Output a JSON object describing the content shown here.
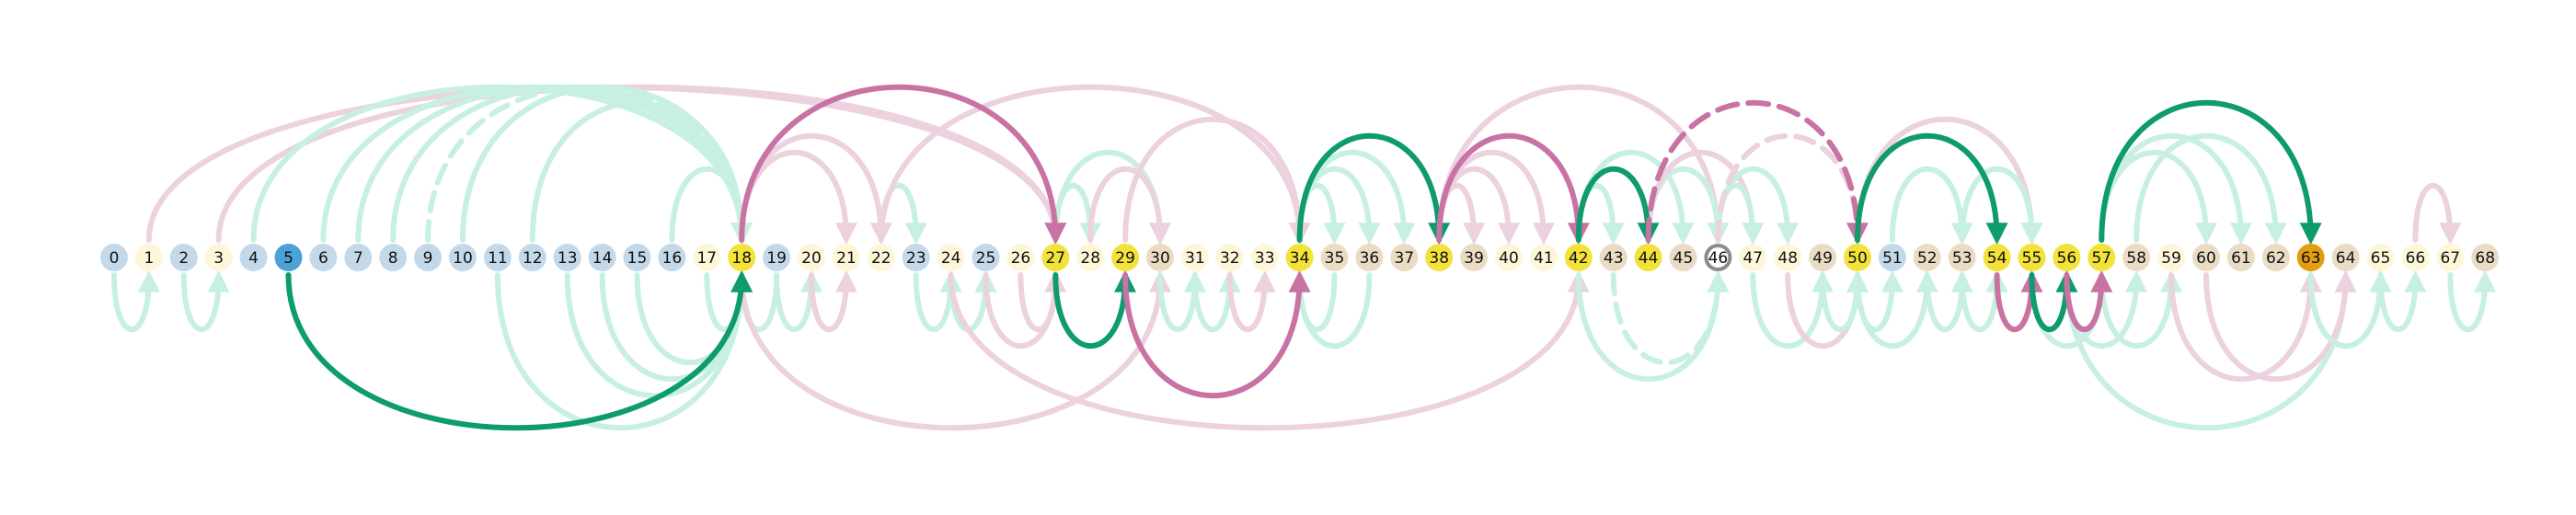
{
  "colors": {
    "blue_light": "#c3d9ea",
    "blue_strong": "#4aa2d9",
    "cream": "#fdf6d8",
    "tan": "#eadcc4",
    "yellow": "#f2e23a",
    "orange": "#e39e0f",
    "green_strong": "#0e9b6e",
    "green_faint": "#c7f0e2",
    "pink_strong": "#c873a3",
    "pink_faint": "#ecd1df",
    "ring": "#8c8c8c"
  },
  "nodes": [
    {
      "id": 0,
      "label": "0",
      "type": "blue_light"
    },
    {
      "id": 1,
      "label": "1",
      "type": "cream"
    },
    {
      "id": 2,
      "label": "2",
      "type": "blue_light"
    },
    {
      "id": 3,
      "label": "3",
      "type": "cream"
    },
    {
      "id": 4,
      "label": "4",
      "type": "blue_light"
    },
    {
      "id": 5,
      "label": "5",
      "type": "blue_strong"
    },
    {
      "id": 6,
      "label": "6",
      "type": "blue_light"
    },
    {
      "id": 7,
      "label": "7",
      "type": "blue_light"
    },
    {
      "id": 8,
      "label": "8",
      "type": "blue_light"
    },
    {
      "id": 9,
      "label": "9",
      "type": "blue_light"
    },
    {
      "id": 10,
      "label": "10",
      "type": "blue_light"
    },
    {
      "id": 11,
      "label": "11",
      "type": "blue_light"
    },
    {
      "id": 12,
      "label": "12",
      "type": "blue_light"
    },
    {
      "id": 13,
      "label": "13",
      "type": "blue_light"
    },
    {
      "id": 14,
      "label": "14",
      "type": "blue_light"
    },
    {
      "id": 15,
      "label": "15",
      "type": "blue_light"
    },
    {
      "id": 16,
      "label": "16",
      "type": "blue_light"
    },
    {
      "id": 17,
      "label": "17",
      "type": "cream"
    },
    {
      "id": 18,
      "label": "18",
      "type": "yellow"
    },
    {
      "id": 19,
      "label": "19",
      "type": "blue_light"
    },
    {
      "id": 20,
      "label": "20",
      "type": "cream"
    },
    {
      "id": 21,
      "label": "21",
      "type": "cream"
    },
    {
      "id": 22,
      "label": "22",
      "type": "cream"
    },
    {
      "id": 23,
      "label": "23",
      "type": "blue_light"
    },
    {
      "id": 24,
      "label": "24",
      "type": "cream"
    },
    {
      "id": 25,
      "label": "25",
      "type": "blue_light"
    },
    {
      "id": 26,
      "label": "26",
      "type": "cream"
    },
    {
      "id": 27,
      "label": "27",
      "type": "yellow"
    },
    {
      "id": 28,
      "label": "28",
      "type": "cream"
    },
    {
      "id": 29,
      "label": "29",
      "type": "yellow"
    },
    {
      "id": 30,
      "label": "30",
      "type": "tan"
    },
    {
      "id": 31,
      "label": "31",
      "type": "cream"
    },
    {
      "id": 32,
      "label": "32",
      "type": "cream"
    },
    {
      "id": 33,
      "label": "33",
      "type": "cream"
    },
    {
      "id": 34,
      "label": "34",
      "type": "yellow"
    },
    {
      "id": 35,
      "label": "35",
      "type": "tan"
    },
    {
      "id": 36,
      "label": "36",
      "type": "tan"
    },
    {
      "id": 37,
      "label": "37",
      "type": "tan"
    },
    {
      "id": 38,
      "label": "38",
      "type": "yellow"
    },
    {
      "id": 39,
      "label": "39",
      "type": "tan"
    },
    {
      "id": 40,
      "label": "40",
      "type": "cream"
    },
    {
      "id": 41,
      "label": "41",
      "type": "cream"
    },
    {
      "id": 42,
      "label": "42",
      "type": "yellow"
    },
    {
      "id": 43,
      "label": "43",
      "type": "tan"
    },
    {
      "id": 44,
      "label": "44",
      "type": "yellow"
    },
    {
      "id": 45,
      "label": "45",
      "type": "tan"
    },
    {
      "id": 46,
      "label": "46",
      "type": "ring"
    },
    {
      "id": 47,
      "label": "47",
      "type": "cream"
    },
    {
      "id": 48,
      "label": "48",
      "type": "cream"
    },
    {
      "id": 49,
      "label": "49",
      "type": "tan"
    },
    {
      "id": 50,
      "label": "50",
      "type": "yellow"
    },
    {
      "id": 51,
      "label": "51",
      "type": "blue_light"
    },
    {
      "id": 52,
      "label": "52",
      "type": "tan"
    },
    {
      "id": 53,
      "label": "53",
      "type": "tan"
    },
    {
      "id": 54,
      "label": "54",
      "type": "yellow"
    },
    {
      "id": 55,
      "label": "55",
      "type": "yellow"
    },
    {
      "id": 56,
      "label": "56",
      "type": "yellow"
    },
    {
      "id": 57,
      "label": "57",
      "type": "yellow"
    },
    {
      "id": 58,
      "label": "58",
      "type": "tan"
    },
    {
      "id": 59,
      "label": "59",
      "type": "cream"
    },
    {
      "id": 60,
      "label": "60",
      "type": "tan"
    },
    {
      "id": 61,
      "label": "61",
      "type": "tan"
    },
    {
      "id": 62,
      "label": "62",
      "type": "tan"
    },
    {
      "id": 63,
      "label": "63",
      "type": "orange"
    },
    {
      "id": 64,
      "label": "64",
      "type": "tan"
    },
    {
      "id": 65,
      "label": "65",
      "type": "cream"
    },
    {
      "id": 66,
      "label": "66",
      "type": "cream"
    },
    {
      "id": 67,
      "label": "67",
      "type": "cream"
    },
    {
      "id": 68,
      "label": "68",
      "type": "tan"
    }
  ],
  "edges": [
    {
      "from": 5,
      "to": 18,
      "side": "below",
      "color": "green_strong",
      "dashed": false
    },
    {
      "from": 18,
      "to": 27,
      "side": "above",
      "color": "pink_strong",
      "dashed": false
    },
    {
      "from": 27,
      "to": 29,
      "side": "below",
      "color": "green_strong",
      "dashed": false
    },
    {
      "from": 29,
      "to": 34,
      "side": "below",
      "color": "pink_strong",
      "dashed": false
    },
    {
      "from": 34,
      "to": 38,
      "side": "above",
      "color": "green_strong",
      "dashed": false
    },
    {
      "from": 38,
      "to": 42,
      "side": "above",
      "color": "pink_strong",
      "dashed": false
    },
    {
      "from": 42,
      "to": 44,
      "side": "above",
      "color": "green_strong",
      "dashed": false
    },
    {
      "from": 44,
      "to": 50,
      "side": "above",
      "color": "pink_strong",
      "dashed": true
    },
    {
      "from": 50,
      "to": 54,
      "side": "above",
      "color": "green_strong",
      "dashed": false
    },
    {
      "from": 54,
      "to": 55,
      "side": "below",
      "color": "pink_strong",
      "dashed": false
    },
    {
      "from": 55,
      "to": 56,
      "side": "below",
      "color": "green_strong",
      "dashed": false
    },
    {
      "from": 56,
      "to": 57,
      "side": "below",
      "color": "pink_strong",
      "dashed": false
    },
    {
      "from": 57,
      "to": 63,
      "side": "above",
      "color": "green_strong",
      "dashed": false
    },
    {
      "from": 0,
      "to": 1,
      "side": "below",
      "color": "green_faint",
      "dashed": false
    },
    {
      "from": 2,
      "to": 3,
      "side": "below",
      "color": "green_faint",
      "dashed": false
    },
    {
      "from": 1,
      "to": 27,
      "side": "above",
      "color": "pink_faint",
      "dashed": false
    },
    {
      "from": 3,
      "to": 27,
      "side": "above",
      "color": "pink_faint",
      "dashed": false
    },
    {
      "from": 4,
      "to": 18,
      "side": "above",
      "color": "green_faint",
      "dashed": false
    },
    {
      "from": 6,
      "to": 18,
      "side": "above",
      "color": "green_faint",
      "dashed": false
    },
    {
      "from": 7,
      "to": 18,
      "side": "above",
      "color": "green_faint",
      "dashed": false
    },
    {
      "from": 8,
      "to": 18,
      "side": "above",
      "color": "green_faint",
      "dashed": false
    },
    {
      "from": 9,
      "to": 18,
      "side": "above",
      "color": "green_faint",
      "dashed": true
    },
    {
      "from": 10,
      "to": 18,
      "side": "above",
      "color": "green_faint",
      "dashed": false
    },
    {
      "from": 12,
      "to": 18,
      "side": "above",
      "color": "green_faint",
      "dashed": false
    },
    {
      "from": 16,
      "to": 18,
      "side": "above",
      "color": "green_faint",
      "dashed": false
    },
    {
      "from": 11,
      "to": 18,
      "side": "below",
      "color": "green_faint",
      "dashed": false
    },
    {
      "from": 13,
      "to": 18,
      "side": "below",
      "color": "green_faint",
      "dashed": false
    },
    {
      "from": 14,
      "to": 18,
      "side": "below",
      "color": "green_faint",
      "dashed": false
    },
    {
      "from": 15,
      "to": 18,
      "side": "below",
      "color": "green_faint",
      "dashed": false
    },
    {
      "from": 17,
      "to": 18,
      "side": "below",
      "color": "green_faint",
      "dashed": false
    },
    {
      "from": 19,
      "to": 18,
      "side": "below",
      "color": "green_faint",
      "dashed": false
    },
    {
      "from": 18,
      "to": 21,
      "side": "above",
      "color": "pink_faint",
      "dashed": false
    },
    {
      "from": 18,
      "to": 22,
      "side": "above",
      "color": "pink_faint",
      "dashed": false
    },
    {
      "from": 18,
      "to": 30,
      "side": "below",
      "color": "pink_faint",
      "dashed": false
    },
    {
      "from": 19,
      "to": 20,
      "side": "below",
      "color": "green_faint",
      "dashed": false
    },
    {
      "from": 20,
      "to": 21,
      "side": "below",
      "color": "pink_faint",
      "dashed": false
    },
    {
      "from": 22,
      "to": 23,
      "side": "above",
      "color": "green_faint",
      "dashed": false
    },
    {
      "from": 22,
      "to": 34,
      "side": "above",
      "color": "pink_faint",
      "dashed": false
    },
    {
      "from": 23,
      "to": 24,
      "side": "below",
      "color": "green_faint",
      "dashed": false
    },
    {
      "from": 24,
      "to": 25,
      "side": "below",
      "color": "green_faint",
      "dashed": false
    },
    {
      "from": 25,
      "to": 27,
      "side": "below",
      "color": "pink_faint",
      "dashed": false
    },
    {
      "from": 26,
      "to": 27,
      "side": "below",
      "color": "pink_faint",
      "dashed": false
    },
    {
      "from": 27,
      "to": 28,
      "side": "above",
      "color": "green_faint",
      "dashed": false
    },
    {
      "from": 27,
      "to": 30,
      "side": "above",
      "color": "green_faint",
      "dashed": false
    },
    {
      "from": 28,
      "to": 30,
      "side": "above",
      "color": "pink_faint",
      "dashed": false
    },
    {
      "from": 29,
      "to": 34,
      "side": "above",
      "color": "pink_faint",
      "dashed": false
    },
    {
      "from": 30,
      "to": 31,
      "side": "below",
      "color": "green_faint",
      "dashed": false
    },
    {
      "from": 31,
      "to": 32,
      "side": "below",
      "color": "green_faint",
      "dashed": false
    },
    {
      "from": 32,
      "to": 33,
      "side": "below",
      "color": "pink_faint",
      "dashed": false
    },
    {
      "from": 34,
      "to": 35,
      "side": "above",
      "color": "green_faint",
      "dashed": false
    },
    {
      "from": 34,
      "to": 36,
      "side": "above",
      "color": "green_faint",
      "dashed": false
    },
    {
      "from": 34,
      "to": 37,
      "side": "above",
      "color": "green_faint",
      "dashed": false
    },
    {
      "from": 36,
      "to": 34,
      "side": "below",
      "color": "green_faint",
      "dashed": false
    },
    {
      "from": 35,
      "to": 34,
      "side": "below",
      "color": "green_faint",
      "dashed": false
    },
    {
      "from": 24,
      "to": 42,
      "side": "below",
      "color": "pink_faint",
      "dashed": false
    },
    {
      "from": 38,
      "to": 39,
      "side": "above",
      "color": "pink_faint",
      "dashed": false
    },
    {
      "from": 38,
      "to": 40,
      "side": "above",
      "color": "pink_faint",
      "dashed": false
    },
    {
      "from": 38,
      "to": 41,
      "side": "above",
      "color": "pink_faint",
      "dashed": false
    },
    {
      "from": 38,
      "to": 46,
      "side": "above",
      "color": "pink_faint",
      "dashed": false
    },
    {
      "from": 42,
      "to": 43,
      "side": "above",
      "color": "green_faint",
      "dashed": false
    },
    {
      "from": 42,
      "to": 45,
      "side": "above",
      "color": "green_faint",
      "dashed": false
    },
    {
      "from": 43,
      "to": 46,
      "side": "below",
      "color": "green_faint",
      "dashed": true
    },
    {
      "from": 42,
      "to": 46,
      "side": "below",
      "color": "green_faint",
      "dashed": false
    },
    {
      "from": 44,
      "to": 46,
      "side": "above",
      "color": "green_faint",
      "dashed": false
    },
    {
      "from": 44,
      "to": 47,
      "side": "above",
      "color": "pink_faint",
      "dashed": false
    },
    {
      "from": 46,
      "to": 47,
      "side": "above",
      "color": "green_faint",
      "dashed": false
    },
    {
      "from": 46,
      "to": 48,
      "side": "above",
      "color": "green_faint",
      "dashed": false
    },
    {
      "from": 46,
      "to": 50,
      "side": "above",
      "color": "pink_faint",
      "dashed": true
    },
    {
      "from": 47,
      "to": 49,
      "side": "below",
      "color": "green_faint",
      "dashed": false
    },
    {
      "from": 48,
      "to": 50,
      "side": "below",
      "color": "pink_faint",
      "dashed": false
    },
    {
      "from": 49,
      "to": 50,
      "side": "below",
      "color": "green_faint",
      "dashed": false
    },
    {
      "from": 50,
      "to": 51,
      "side": "below",
      "color": "green_faint",
      "dashed": false
    },
    {
      "from": 50,
      "to": 52,
      "side": "below",
      "color": "green_faint",
      "dashed": false
    },
    {
      "from": 50,
      "to": 55,
      "side": "above",
      "color": "pink_faint",
      "dashed": false
    },
    {
      "from": 51,
      "to": 53,
      "side": "above",
      "color": "green_faint",
      "dashed": false
    },
    {
      "from": 53,
      "to": 55,
      "side": "above",
      "color": "green_faint",
      "dashed": false
    },
    {
      "from": 52,
      "to": 53,
      "side": "below",
      "color": "green_faint",
      "dashed": false
    },
    {
      "from": 53,
      "to": 54,
      "side": "below",
      "color": "green_faint",
      "dashed": false
    },
    {
      "from": 55,
      "to": 57,
      "side": "below",
      "color": "green_faint",
      "dashed": false
    },
    {
      "from": 56,
      "to": 58,
      "side": "below",
      "color": "green_faint",
      "dashed": false
    },
    {
      "from": 57,
      "to": 59,
      "side": "below",
      "color": "green_faint",
      "dashed": false
    },
    {
      "from": 57,
      "to": 60,
      "side": "above",
      "color": "green_faint",
      "dashed": false
    },
    {
      "from": 57,
      "to": 61,
      "side": "above",
      "color": "green_faint",
      "dashed": false
    },
    {
      "from": 58,
      "to": 62,
      "side": "above",
      "color": "green_faint",
      "dashed": false
    },
    {
      "from": 56,
      "to": 64,
      "side": "below",
      "color": "green_faint",
      "dashed": false
    },
    {
      "from": 59,
      "to": 63,
      "side": "below",
      "color": "pink_faint",
      "dashed": false
    },
    {
      "from": 60,
      "to": 64,
      "side": "below",
      "color": "pink_faint",
      "dashed": false
    },
    {
      "from": 63,
      "to": 65,
      "side": "below",
      "color": "green_faint",
      "dashed": false
    },
    {
      "from": 65,
      "to": 66,
      "side": "below",
      "color": "green_faint",
      "dashed": false
    },
    {
      "from": 66,
      "to": 67,
      "side": "above",
      "color": "pink_faint",
      "dashed": false
    },
    {
      "from": 67,
      "to": 68,
      "side": "below",
      "color": "green_faint",
      "dashed": false
    }
  ]
}
